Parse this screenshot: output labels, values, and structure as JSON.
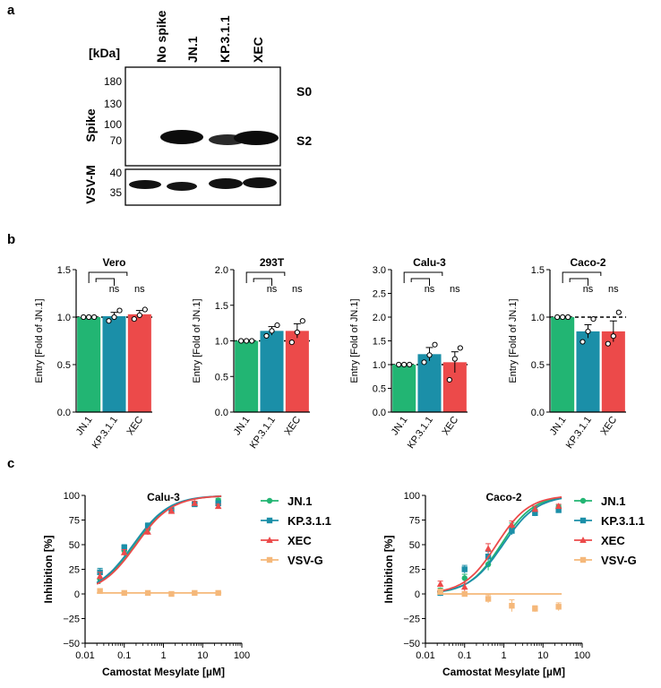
{
  "panel_labels": {
    "a": "a",
    "b": "b",
    "c": "c"
  },
  "western_blot": {
    "kda_label": "[kDa]",
    "lanes": [
      "No spike",
      "JN.1",
      "KP.3.1.1",
      "XEC"
    ],
    "spike_label": "Spike",
    "vsvm_label": "VSV-M",
    "spike_markers": [
      "180",
      "130",
      "100",
      "70"
    ],
    "vsvm_markers": [
      "40",
      "35"
    ],
    "band_labels": {
      "s0": "S0",
      "s2": "S2"
    }
  },
  "colors": {
    "jn1": "#22b573",
    "kp311": "#1b8fa8",
    "xec": "#ec4a4a",
    "vsvg": "#f5b87a",
    "dots_fill": "#ffffff"
  },
  "chart_data": [
    {
      "type": "bar",
      "title": "Vero",
      "categories": [
        "JN.1",
        "KP.3.1.1",
        "XEC"
      ],
      "values": [
        1.0,
        1.01,
        1.03
      ],
      "errors": [
        0.0,
        0.04,
        0.04
      ],
      "points": [
        [
          1.0,
          1.0,
          1.0
        ],
        [
          0.96,
          1.0,
          1.07
        ],
        [
          0.98,
          1.02,
          1.08
        ]
      ],
      "ylabel": "Entry [Fold of JN.1]",
      "ylim": [
        0,
        1.5
      ],
      "yticks": [
        "0.0",
        "0.5",
        "1.0",
        "1.5"
      ],
      "sig": [
        "ns",
        "ns"
      ]
    },
    {
      "type": "bar",
      "title": "293T",
      "categories": [
        "JN.1",
        "KP.3.1.1",
        "XEC"
      ],
      "values": [
        1.0,
        1.14,
        1.14
      ],
      "errors": [
        0.0,
        0.06,
        0.1
      ],
      "points": [
        [
          1.0,
          1.0,
          1.0
        ],
        [
          1.07,
          1.14,
          1.22
        ],
        [
          0.98,
          1.12,
          1.28
        ]
      ],
      "ylabel": "Entry [Fold of JN.1]",
      "ylim": [
        0,
        2.0
      ],
      "yticks": [
        "0.0",
        "0.5",
        "1.0",
        "1.5",
        "2.0"
      ],
      "sig": [
        "ns",
        "ns"
      ]
    },
    {
      "type": "bar",
      "title": "Calu-3",
      "categories": [
        "JN.1",
        "KP.3.1.1",
        "XEC"
      ],
      "values": [
        1.0,
        1.22,
        1.05
      ],
      "errors": [
        0.0,
        0.14,
        0.22
      ],
      "points": [
        [
          1.0,
          1.0,
          1.0
        ],
        [
          1.05,
          1.2,
          1.42
        ],
        [
          0.68,
          1.12,
          1.35
        ]
      ],
      "ylabel": "Entry [Fold of JN.1]",
      "ylim": [
        0,
        3.0
      ],
      "yticks": [
        "0.0",
        "0.5",
        "1.0",
        "1.5",
        "2.0",
        "2.5",
        "3.0"
      ],
      "sig": [
        "ns",
        "ns"
      ]
    },
    {
      "type": "bar",
      "title": "Caco-2",
      "categories": [
        "JN.1",
        "KP.3.1.1",
        "XEC"
      ],
      "values": [
        1.0,
        0.85,
        0.85
      ],
      "errors": [
        0.0,
        0.07,
        0.11
      ],
      "points": [
        [
          1.0,
          1.0,
          1.0
        ],
        [
          0.74,
          0.85,
          0.98
        ],
        [
          0.72,
          0.8,
          1.05
        ]
      ],
      "ylabel": "Entry [Fold of JN.1]",
      "ylim": [
        0,
        1.5
      ],
      "yticks": [
        "0.0",
        "0.5",
        "1.0",
        "1.5"
      ],
      "sig": [
        "ns",
        "ns"
      ]
    },
    {
      "type": "line",
      "title": "Calu-3",
      "xlabel": "Camostat Mesylate [µM]",
      "ylabel": "Inhibition [%]",
      "xlim": [
        0.01,
        100
      ],
      "ylim": [
        -50,
        100
      ],
      "xticks": [
        "0.01",
        "0.1",
        "1",
        "10",
        "100"
      ],
      "yticks": [
        "−50",
        "−25",
        "0",
        "25",
        "50",
        "75",
        "100"
      ],
      "x": [
        0.024,
        0.1,
        0.4,
        1.6,
        6.25,
        25
      ],
      "series": [
        {
          "name": "JN.1",
          "values": [
            15,
            44,
            66,
            86,
            92,
            95
          ],
          "errors": [
            5,
            3,
            3,
            2,
            2,
            2
          ],
          "ic50": 0.19,
          "hill": 0.95
        },
        {
          "name": "KP.3.1.1",
          "values": [
            22,
            47,
            69,
            85,
            91,
            92
          ],
          "errors": [
            4,
            3,
            3,
            2,
            2,
            2
          ],
          "ic50": 0.17,
          "hill": 0.95
        },
        {
          "name": "XEC",
          "values": [
            18,
            42,
            63,
            84,
            92,
            89
          ],
          "errors": [
            4,
            3,
            3,
            2,
            2,
            2
          ],
          "ic50": 0.2,
          "hill": 0.95
        },
        {
          "name": "VSV-G",
          "values": [
            3,
            1,
            1,
            0,
            1,
            1
          ],
          "errors": [
            2,
            1,
            1,
            1,
            1,
            1
          ],
          "flat": 1
        }
      ]
    },
    {
      "type": "line",
      "title": "Caco-2",
      "xlabel": "Camostat Mesylate [µM]",
      "ylabel": "Inhibition [%]",
      "xlim": [
        0.01,
        100
      ],
      "ylim": [
        -50,
        100
      ],
      "xticks": [
        "0.01",
        "0.1",
        "1",
        "10",
        "100"
      ],
      "yticks": [
        "−50",
        "−25",
        "0",
        "25",
        "50",
        "75",
        "100"
      ],
      "x": [
        0.024,
        0.1,
        0.4,
        1.6,
        6.25,
        25
      ],
      "series": [
        {
          "name": "JN.1",
          "values": [
            3,
            16,
            30,
            68,
            85,
            88
          ],
          "errors": [
            3,
            4,
            6,
            4,
            3,
            2
          ],
          "ic50": 0.85,
          "hill": 1.05
        },
        {
          "name": "KP.3.1.1",
          "values": [
            1,
            25,
            38,
            64,
            82,
            85
          ],
          "errors": [
            3,
            4,
            5,
            4,
            3,
            2
          ],
          "ic50": 0.95,
          "hill": 1.0
        },
        {
          "name": "XEC",
          "values": [
            10,
            7,
            46,
            70,
            86,
            89
          ],
          "errors": [
            3,
            4,
            5,
            4,
            3,
            2
          ],
          "ic50": 0.65,
          "hill": 1.05
        },
        {
          "name": "VSV-G",
          "values": [
            2,
            0,
            -5,
            -12,
            -15,
            -13
          ],
          "errors": [
            3,
            2,
            4,
            6,
            3,
            4
          ],
          "flat": 0
        }
      ]
    }
  ]
}
